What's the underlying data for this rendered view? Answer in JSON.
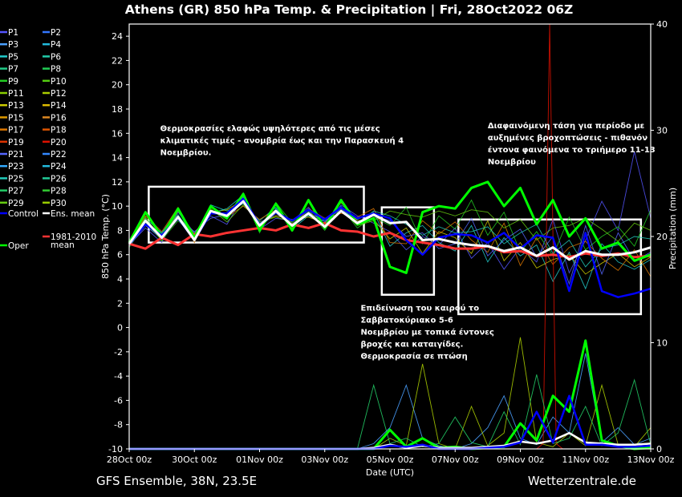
{
  "chart_data": {
    "type": "line",
    "title": "Athens  (GR)  850 hPa Temp. & Precipitation | Fri, 28Oct2022 06Z",
    "xlabel": "Date (UTC)",
    "ylabel": "850 hPa Temp. (°C)",
    "y2label": "Precipitation (mm)",
    "xlim_days": [
      0,
      16
    ],
    "ylim": [
      -10,
      25
    ],
    "y2lim": [
      0,
      40
    ],
    "grid": false,
    "x_ticks": [
      "28Oct 00z",
      "30Oct 00z",
      "01Nov 00z",
      "03Nov 00z",
      "05Nov 00z",
      "07Nov 00z",
      "09Nov 00z",
      "11Nov 00z",
      "13Nov 00z"
    ],
    "y_ticks": [
      "-10",
      "-8",
      "-6",
      "-4",
      "-2",
      "0",
      "2",
      "4",
      "6",
      "8",
      "10",
      "12",
      "14",
      "16",
      "18",
      "20",
      "22",
      "24"
    ],
    "y2_ticks": [
      "0",
      "10",
      "20",
      "30",
      "40"
    ],
    "source_left": "GFS Ensemble, 38N, 23.5E",
    "source_right": "Wetterzentrale.de",
    "legend": [
      {
        "label": "P1",
        "color": "#5555ff"
      },
      {
        "label": "P2",
        "color": "#3377ff"
      },
      {
        "label": "P3",
        "color": "#4aa0ff"
      },
      {
        "label": "P4",
        "color": "#22bbdd"
      },
      {
        "label": "P5",
        "color": "#22cccc"
      },
      {
        "label": "P6",
        "color": "#22ccaa"
      },
      {
        "label": "P7",
        "color": "#22cc88"
      },
      {
        "label": "P8",
        "color": "#22cc55"
      },
      {
        "label": "P9",
        "color": "#22cc22"
      },
      {
        "label": "P10",
        "color": "#55cc11"
      },
      {
        "label": "P11",
        "color": "#88cc00"
      },
      {
        "label": "P12",
        "color": "#aacc00"
      },
      {
        "label": "P13",
        "color": "#cccc00"
      },
      {
        "label": "P14",
        "color": "#ddbb00"
      },
      {
        "label": "P15",
        "color": "#dd9900"
      },
      {
        "label": "P16",
        "color": "#dd8822"
      },
      {
        "label": "P17",
        "color": "#dd7700"
      },
      {
        "label": "P18",
        "color": "#dd5500"
      },
      {
        "label": "P19",
        "color": "#dd3300"
      },
      {
        "label": "P20",
        "color": "#dd1100"
      },
      {
        "label": "P21",
        "color": "#5566ff"
      },
      {
        "label": "P22",
        "color": "#3388ff"
      },
      {
        "label": "P23",
        "color": "#33aaff"
      },
      {
        "label": "P24",
        "color": "#22bbdd"
      },
      {
        "label": "P25",
        "color": "#22ccbb"
      },
      {
        "label": "P26",
        "color": "#22cc99"
      },
      {
        "label": "P27",
        "color": "#22cc66"
      },
      {
        "label": "P28",
        "color": "#33cc33"
      },
      {
        "label": "P29",
        "color": "#66cc11"
      },
      {
        "label": "P30",
        "color": "#99cc00"
      },
      {
        "label": "Control",
        "color": "#0000ff"
      },
      {
        "label": "Ens. mean",
        "color": "#ffffff"
      },
      {
        "label": "Oper",
        "color": "#00ff00"
      },
      {
        "label": "1981-2010\nmean",
        "color": "#ff3333"
      }
    ],
    "annotations": [
      {
        "text": "Θερμοκρασίες ελαφώς υψηλότερες από τις μέσες\nκλιματικές τιμές - ανομβρία έως και την Παρασκευή 4\nΝοεμβρίου.",
        "x_day": 0.95,
        "y": 16.2
      },
      {
        "text": "Διαφαινόμενη τάση για περίοδο με\nαυξημένες βροχοπτώσεις - πιθανόν\nέντονα φαινόμενα το τριήμερο 11-13\nΝοεμβρίου",
        "x_day": 11.0,
        "y": 16.4
      },
      {
        "text": "Επιδείνωση του καιρού το\nΣαββατοκύριακο 5-6\nΝοεμβρίου με τοπικά έντονες\nβροχές και καταιγίδες.\nΘερμοκρασία σε πτώση",
        "x_day": 7.1,
        "y": 1.4
      }
    ],
    "highlight_boxes": [
      {
        "x0_day": 0.6,
        "x1_day": 7.2,
        "y0": 7.0,
        "y1": 11.6
      },
      {
        "x0_day": 7.75,
        "x1_day": 9.35,
        "y0": 2.7,
        "y1": 9.9
      },
      {
        "x0_day": 10.1,
        "x1_day": 15.7,
        "y0": 1.1,
        "y1": 8.9
      }
    ],
    "series": [
      {
        "name": "Ens. mean",
        "x_day": [
          0,
          0.5,
          1,
          1.5,
          2,
          2.5,
          3,
          3.5,
          4,
          4.5,
          5,
          5.5,
          6,
          6.5,
          7,
          7.5,
          8,
          8.5,
          9,
          9.5,
          10,
          10.5,
          11,
          11.5,
          12,
          12.5,
          13,
          13.5,
          14,
          14.5,
          15,
          15.5,
          16
        ],
        "values": [
          6.9,
          8.8,
          7.4,
          9.1,
          7.2,
          9.6,
          9.2,
          10.4,
          8.4,
          9.6,
          8.4,
          9.4,
          8.3,
          9.6,
          8.6,
          9.3,
          8.6,
          8.7,
          7.2,
          7.3,
          7.0,
          6.8,
          6.7,
          6.3,
          6.6,
          5.9,
          6.6,
          5.6,
          6.3,
          6.0,
          6.0,
          6.2,
          6.6
        ]
      },
      {
        "name": "1981-2010\nmean",
        "x_day": [
          0,
          0.5,
          1,
          1.5,
          2,
          2.5,
          3,
          3.5,
          4,
          4.5,
          5,
          5.5,
          6,
          6.5,
          7,
          7.5,
          8,
          8.5,
          9,
          9.5,
          10,
          10.5,
          11,
          11.5,
          12,
          12.5,
          13,
          13.5,
          14,
          14.5,
          15,
          15.5,
          16
        ],
        "values": [
          6.9,
          6.5,
          7.4,
          6.8,
          7.7,
          7.5,
          7.8,
          8.0,
          8.2,
          8.0,
          8.5,
          8.2,
          8.6,
          8.0,
          7.9,
          7.5,
          7.8,
          7.2,
          7.0,
          6.8,
          6.5,
          6.5,
          6.7,
          6.2,
          6.3,
          5.9,
          6.0,
          5.8,
          6.1,
          5.9,
          6.1,
          5.8,
          5.9
        ]
      },
      {
        "name": "Oper",
        "x_day": [
          0,
          0.5,
          1,
          1.5,
          2,
          2.5,
          3,
          3.5,
          4,
          4.5,
          5,
          5.5,
          6,
          6.5,
          7,
          7.5,
          8,
          8.5,
          9,
          9.5,
          10,
          10.5,
          11,
          11.5,
          12,
          12.5,
          13,
          13.5,
          14,
          14.5,
          15,
          15.5,
          16
        ],
        "values": [
          7.0,
          9.5,
          7.5,
          9.8,
          7.4,
          10.0,
          9.0,
          11.0,
          8.0,
          10.2,
          8.0,
          10.5,
          8.2,
          10.5,
          8.5,
          9.0,
          5.0,
          4.5,
          9.5,
          10.0,
          9.8,
          11.5,
          12.0,
          10.0,
          11.5,
          8.5,
          10.5,
          7.5,
          9.0,
          6.5,
          7.0,
          5.5,
          6.0
        ]
      },
      {
        "name": "Control",
        "x_day": [
          0,
          0.5,
          1,
          1.5,
          2,
          2.5,
          3,
          3.5,
          4,
          4.5,
          5,
          5.5,
          6,
          6.5,
          7,
          7.5,
          8,
          8.5,
          9,
          9.5,
          10,
          10.5,
          11,
          11.5,
          12,
          12.5,
          13,
          13.5,
          14,
          14.5,
          15,
          15.5,
          16
        ],
        "values": [
          6.9,
          8.5,
          7.6,
          9.0,
          7.2,
          9.4,
          9.4,
          10.6,
          8.5,
          9.5,
          8.8,
          9.7,
          8.9,
          9.9,
          9.0,
          9.4,
          9.0,
          7.2,
          6.0,
          7.4,
          7.7,
          7.6,
          7.0,
          7.8,
          6.5,
          7.6,
          7.4,
          3.0,
          7.8,
          3.0,
          2.5,
          2.8,
          3.2
        ]
      }
    ],
    "member_series": [
      {
        "name": "P1",
        "values": [
          6.8,
          8.2,
          7.0,
          9.5,
          7.8,
          9.2,
          8.5,
          10.8,
          8.1,
          9.0,
          8.8,
          9.9,
          8.4,
          10.1,
          9.2,
          8.6,
          7.9,
          6.4,
          7.5,
          6.8,
          8.2,
          5.7,
          7.0,
          4.8,
          6.6,
          5.4,
          8.9,
          4.5,
          7.2,
          10.4,
          8.0,
          14.5,
          9.0
        ]
      },
      {
        "name": "P5",
        "values": [
          7.1,
          9.0,
          7.8,
          9.7,
          7.1,
          10.1,
          9.6,
          10.2,
          8.8,
          9.9,
          8.1,
          9.2,
          8.8,
          9.5,
          8.9,
          9.5,
          6.7,
          7.8,
          8.4,
          7.0,
          6.3,
          8.4,
          5.4,
          7.4,
          5.9,
          6.8,
          3.8,
          6.2,
          3.2,
          6.9,
          5.4,
          4.8,
          5.6
        ]
      },
      {
        "name": "P9",
        "values": [
          6.6,
          8.6,
          7.2,
          8.8,
          7.5,
          9.7,
          8.9,
          11.1,
          7.8,
          10.3,
          8.6,
          9.6,
          8.0,
          9.9,
          8.2,
          9.1,
          8.4,
          9.9,
          6.9,
          9.2,
          8.1,
          10.5,
          7.6,
          9.5,
          6.2,
          7.9,
          5.9,
          9.1,
          6.4,
          7.5,
          8.3,
          6.7,
          9.7
        ]
      },
      {
        "name": "P13",
        "values": [
          7.0,
          8.9,
          7.5,
          9.2,
          7.6,
          9.5,
          9.7,
          10.5,
          8.6,
          9.2,
          8.9,
          9.1,
          8.6,
          10.3,
          8.8,
          8.9,
          7.3,
          8.2,
          6.1,
          7.9,
          7.4,
          6.1,
          8.8,
          5.5,
          7.0,
          4.9,
          5.6,
          6.0,
          4.4,
          5.3,
          6.1,
          5.0,
          5.8
        ]
      },
      {
        "name": "P17",
        "values": [
          6.9,
          9.2,
          7.9,
          9.9,
          7.0,
          9.9,
          9.1,
          10.0,
          8.9,
          9.7,
          8.2,
          9.8,
          9.0,
          9.4,
          9.1,
          9.8,
          7.0,
          6.9,
          8.8,
          7.7,
          8.7,
          7.2,
          6.2,
          8.6,
          5.1,
          7.4,
          5.2,
          6.6,
          7.1,
          5.7,
          4.7,
          6.4,
          4.2
        ]
      },
      {
        "name": "P21",
        "values": [
          6.7,
          8.4,
          7.3,
          9.0,
          7.9,
          9.0,
          9.3,
          10.7,
          8.3,
          9.4,
          8.5,
          9.5,
          8.7,
          9.8,
          8.7,
          9.2,
          8.8,
          7.5,
          7.8,
          6.5,
          6.9,
          9.0,
          5.9,
          7.2,
          8.1,
          5.8,
          7.5,
          3.6,
          8.4,
          4.4,
          7.8,
          5.5,
          6.2
        ]
      },
      {
        "name": "P25",
        "values": [
          7.2,
          8.7,
          7.7,
          9.3,
          7.3,
          9.4,
          9.8,
          10.9,
          8.0,
          9.8,
          8.3,
          9.3,
          8.5,
          10.0,
          8.5,
          9.6,
          9.2,
          8.5,
          7.6,
          8.3,
          7.8,
          7.9,
          8.3,
          6.9,
          7.8,
          8.5,
          6.1,
          7.2,
          5.0,
          6.5,
          6.8,
          7.5,
          7.3
        ]
      },
      {
        "name": "P29",
        "values": [
          6.8,
          9.1,
          7.1,
          9.6,
          7.7,
          9.8,
          8.7,
          10.1,
          8.7,
          9.1,
          8.7,
          9.7,
          8.2,
          9.7,
          8.4,
          8.8,
          9.6,
          9.3,
          9.1,
          9.6,
          9.2,
          9.7,
          9.5,
          8.2,
          8.9,
          7.2,
          8.2,
          8.4,
          9.0,
          8.1,
          7.1,
          8.6,
          8.0
        ]
      }
    ],
    "precip": [
      {
        "name": "Oper",
        "x_day": [
          0,
          1,
          2,
          3,
          4,
          5,
          6,
          7,
          7.5,
          8,
          8.5,
          9,
          9.5,
          10,
          10.5,
          11,
          11.5,
          12,
          12.5,
          13,
          13.5,
          14,
          14.5,
          15,
          15.5,
          16
        ],
        "values_mm": [
          0,
          0,
          0,
          0,
          0,
          0,
          0,
          0,
          0,
          1.8,
          0.2,
          1.0,
          0.1,
          0.2,
          0,
          0.1,
          0.2,
          2.4,
          0.8,
          5.0,
          3.5,
          10.2,
          0.8,
          0.3,
          0,
          0.1
        ]
      },
      {
        "name": "Ens. mean",
        "x_day": [
          0,
          1,
          2,
          3,
          4,
          5,
          6,
          7,
          7.5,
          8,
          8.5,
          9,
          9.5,
          10,
          10.5,
          11,
          11.5,
          12,
          12.5,
          13,
          13.5,
          14,
          14.5,
          15,
          15.5,
          16
        ],
        "values_mm": [
          0,
          0,
          0,
          0,
          0,
          0,
          0,
          0,
          0.1,
          0.4,
          0.1,
          0.3,
          0.1,
          0.1,
          0.1,
          0.2,
          0.3,
          0.7,
          0.5,
          0.8,
          1.5,
          0.6,
          0.5,
          0.4,
          0.4,
          0.5
        ]
      },
      {
        "name": "Control",
        "x_day": [
          0,
          1,
          2,
          3,
          4,
          5,
          6,
          7,
          7.5,
          8,
          8.5,
          9,
          9.5,
          10,
          10.5,
          11,
          11.5,
          12,
          12.5,
          13,
          13.5,
          14,
          14.5,
          15,
          15.5,
          16
        ],
        "values_mm": [
          0,
          0,
          0,
          0,
          0,
          0,
          0,
          0,
          0,
          0.3,
          0.2,
          0.4,
          0,
          0,
          0,
          0.1,
          0.2,
          0.6,
          3.5,
          0.6,
          5.0,
          0.4,
          0.4,
          0.2,
          0.2,
          0.3
        ]
      }
    ],
    "precip_members": [
      {
        "name": "P3",
        "x_day": [
          7.0,
          7.5,
          8.0,
          8.5,
          9.0,
          9.5,
          10.0,
          10.5,
          11.0,
          11.5,
          12.0,
          12.5,
          13.0,
          13.5,
          14.0,
          14.5,
          15.0,
          15.5,
          16.0
        ],
        "values_mm": [
          0,
          0.5,
          2.0,
          6.0,
          1.0,
          0.3,
          0,
          0.5,
          2.0,
          5.0,
          1.0,
          0.4,
          3.0,
          1.5,
          9.0,
          0.6,
          2.0,
          0.4,
          1.0
        ]
      },
      {
        "name": "P12",
        "x_day": [
          7.0,
          7.5,
          8.0,
          8.5,
          9.0,
          9.5,
          10.0,
          10.5,
          11.0,
          11.5,
          12.0,
          12.5,
          13.0,
          13.5,
          14.0,
          14.5,
          15.0,
          15.5,
          16.0
        ],
        "values_mm": [
          0,
          0,
          1.0,
          0.3,
          8.0,
          0.5,
          0,
          4.0,
          0.3,
          1.5,
          10.5,
          0.6,
          0.2,
          1.5,
          0.3,
          6.0,
          0.4,
          0.2,
          2.0
        ]
      },
      {
        "name": "P20",
        "x_day": [
          12.5,
          12.7,
          12.9,
          13.1,
          13.3
        ],
        "values_mm": [
          0,
          0.5,
          40,
          0.5,
          0
        ]
      },
      {
        "name": "P27",
        "x_day": [
          7.0,
          7.5,
          8.0,
          8.5,
          9.0,
          9.5,
          10.0,
          10.5,
          11.0,
          11.5,
          12.0,
          12.5,
          13.0,
          13.5,
          14.0,
          14.5,
          15.0,
          15.5,
          16.0
        ],
        "values_mm": [
          0,
          6.0,
          0.5,
          1.0,
          0.2,
          0.5,
          3.0,
          0.6,
          0.2,
          3.5,
          0.4,
          7.0,
          0.5,
          1.0,
          4.0,
          0.3,
          1.5,
          6.5,
          0.4
        ]
      }
    ]
  }
}
